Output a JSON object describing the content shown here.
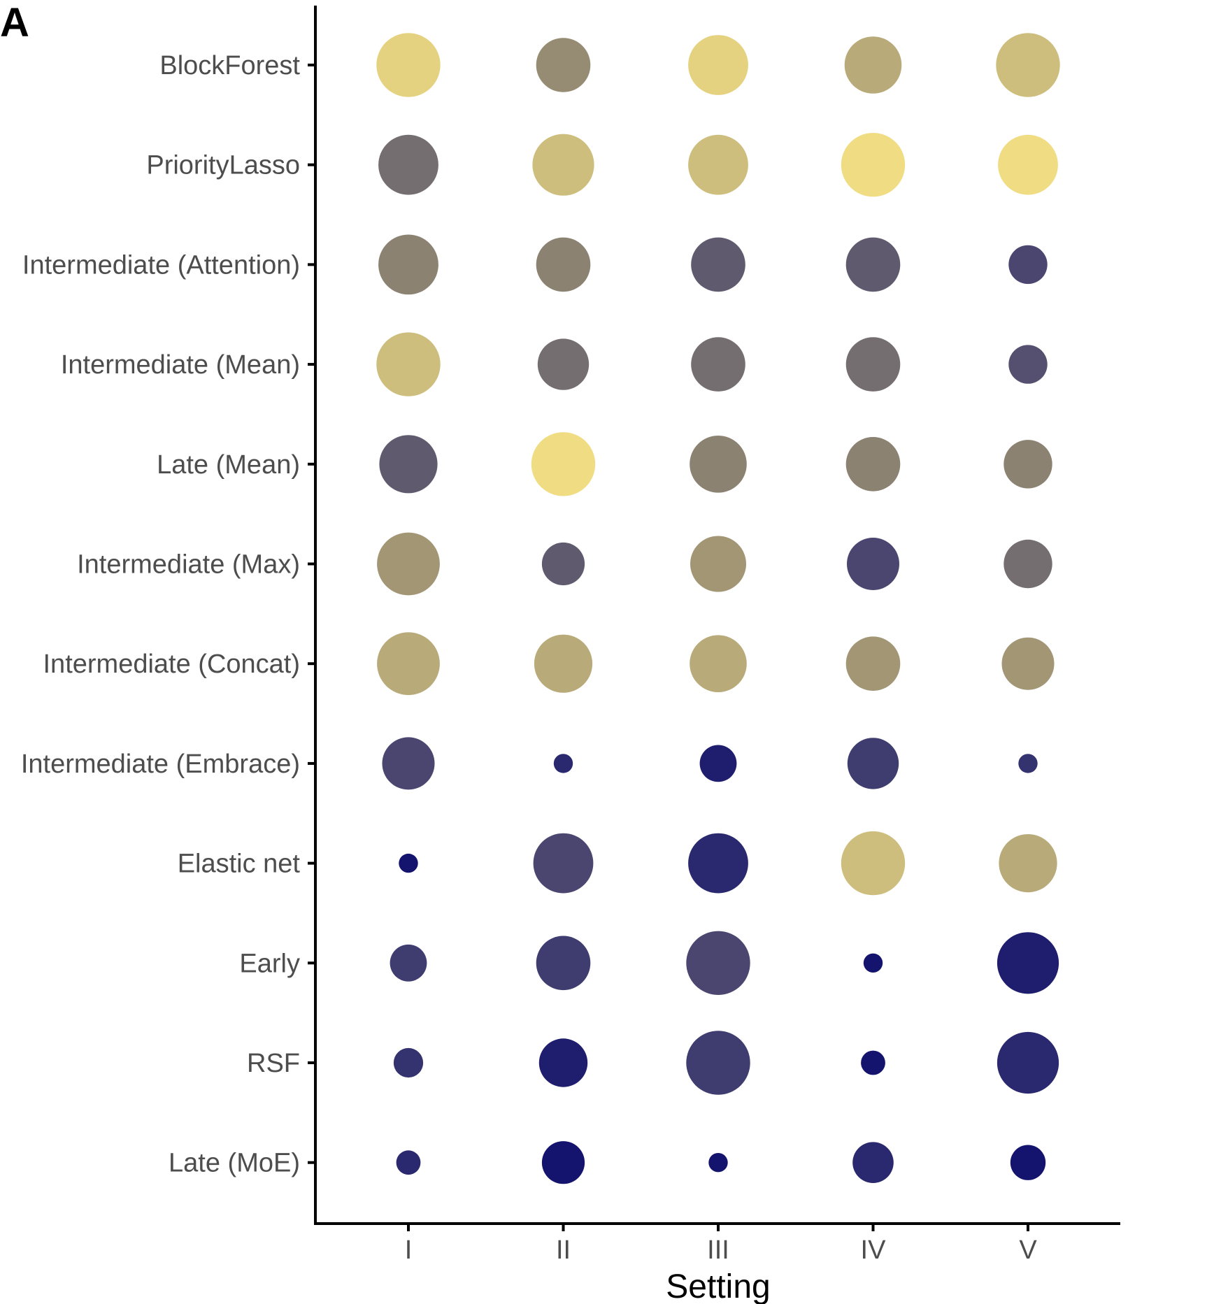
{
  "panel_label": "A",
  "chart_data": {
    "type": "scatter",
    "subtype": "dot-matrix",
    "title": "",
    "xlabel": "Setting",
    "ylabel": "",
    "x_categories": [
      "I",
      "II",
      "III",
      "IV",
      "V"
    ],
    "y_categories": [
      "BlockForest",
      "PriorityLasso",
      "Intermediate (Attention)",
      "Intermediate (Mean)",
      "Late (Mean)",
      "Intermediate (Max)",
      "Intermediate (Concat)",
      "Intermediate (Embrace)",
      "Elastic net",
      "Early",
      "RSF",
      "Late (MoE)"
    ],
    "value_range": [
      0,
      1
    ],
    "color_low": "#14146e",
    "color_high": "#f0dc82",
    "values": [
      [
        0.95,
        0.6,
        0.95,
        0.75,
        0.85
      ],
      [
        0.45,
        0.85,
        0.85,
        1.0,
        1.0
      ],
      [
        0.55,
        0.55,
        0.35,
        0.35,
        0.25
      ],
      [
        0.85,
        0.45,
        0.45,
        0.45,
        0.3
      ],
      [
        0.35,
        1.0,
        0.55,
        0.55,
        0.55
      ],
      [
        0.65,
        0.35,
        0.65,
        0.25,
        0.45
      ],
      [
        0.75,
        0.75,
        0.75,
        0.65,
        0.65
      ],
      [
        0.25,
        0.1,
        0.05,
        0.2,
        0.15
      ],
      [
        0.0,
        0.25,
        0.1,
        0.85,
        0.75
      ],
      [
        0.2,
        0.2,
        0.25,
        0.0,
        0.05
      ],
      [
        0.15,
        0.05,
        0.2,
        0.0,
        0.1
      ],
      [
        0.1,
        0.0,
        0.0,
        0.1,
        0.0
      ]
    ],
    "sizes": [
      [
        0.92,
        0.75,
        0.85,
        0.8,
        0.92
      ],
      [
        0.85,
        0.88,
        0.85,
        0.92,
        0.85
      ],
      [
        0.85,
        0.75,
        0.75,
        0.75,
        0.48
      ],
      [
        0.92,
        0.7,
        0.75,
        0.75,
        0.48
      ],
      [
        0.82,
        0.92,
        0.8,
        0.75,
        0.65
      ],
      [
        0.9,
        0.55,
        0.78,
        0.72,
        0.65
      ],
      [
        0.9,
        0.82,
        0.8,
        0.75,
        0.72
      ],
      [
        0.72,
        0.14,
        0.45,
        0.7,
        0.14
      ],
      [
        0.14,
        0.85,
        0.85,
        0.92,
        0.82
      ],
      [
        0.45,
        0.75,
        0.92,
        0.14,
        0.88
      ],
      [
        0.32,
        0.65,
        0.92,
        0.23,
        0.88
      ],
      [
        0.23,
        0.55,
        0.14,
        0.52,
        0.42
      ]
    ],
    "grid": false,
    "legend": "none"
  }
}
